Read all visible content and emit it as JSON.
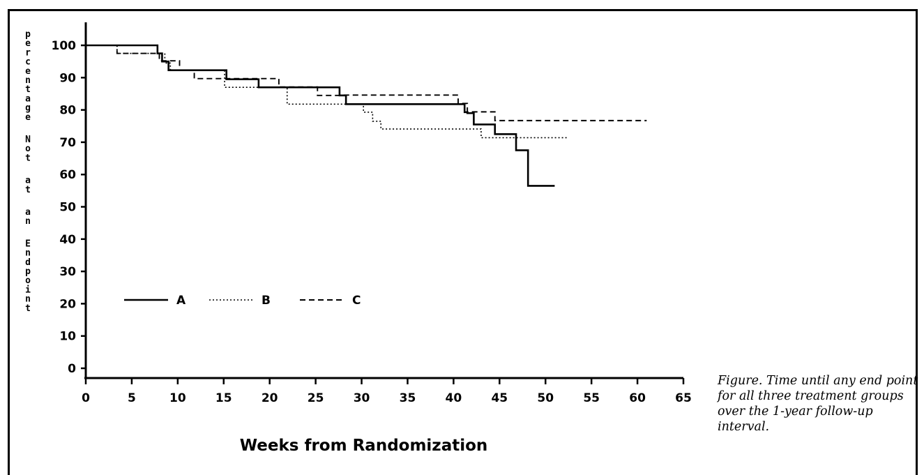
{
  "caption": "Figure. Time until any end point for all three treatment groups over the 1-year follow-up interval.",
  "chart_data": {
    "type": "line",
    "step": true,
    "title": "",
    "xlabel": "Weeks from Randomization",
    "ylabel": "percentage Not at an Endpoint",
    "xlim": [
      0,
      65
    ],
    "ylim": [
      0,
      100
    ],
    "xticks": [
      0,
      5,
      10,
      15,
      20,
      25,
      30,
      35,
      40,
      45,
      50,
      55,
      60,
      65
    ],
    "yticks": [
      0,
      10,
      20,
      30,
      40,
      50,
      60,
      70,
      80,
      90,
      100
    ],
    "grid": false,
    "legend_position": "lower-left",
    "series": [
      {
        "name": "A",
        "line_style": "solid",
        "x": [
          0,
          7.8,
          8.3,
          9.0,
          15.3,
          18.8,
          27.6,
          28.3,
          41.2,
          41.5,
          42.2,
          44.5,
          46.8,
          48.1,
          51.0
        ],
        "y": [
          100,
          97.5,
          95,
          92.3,
          89.5,
          87,
          84.5,
          81.8,
          79.3,
          79,
          75.5,
          72.5,
          67.5,
          56.5,
          56.5
        ]
      },
      {
        "name": "B",
        "line_style": "dotted",
        "x": [
          0,
          3.4,
          5.7,
          8.6,
          9.2,
          10.8,
          15.1,
          21.9,
          30.2,
          31.2,
          32.1,
          43.0,
          52.4
        ],
        "y": [
          100,
          97.5,
          97.5,
          94.5,
          92.2,
          92.2,
          87,
          81.8,
          79.3,
          76.5,
          74.1,
          71.4,
          71.4
        ],
        "x_steps_note": ""
      },
      {
        "name": "C",
        "line_style": "dashed",
        "x": [
          0,
          3.4,
          8.0,
          10.2,
          11.8,
          21.0,
          25.2,
          28.0,
          40.5,
          41.5,
          44.5,
          61.0
        ],
        "y": [
          100,
          97.5,
          95.2,
          92.3,
          89.7,
          87.1,
          84.5,
          84.6,
          82,
          79.4,
          76.7,
          76.7
        ]
      }
    ]
  }
}
